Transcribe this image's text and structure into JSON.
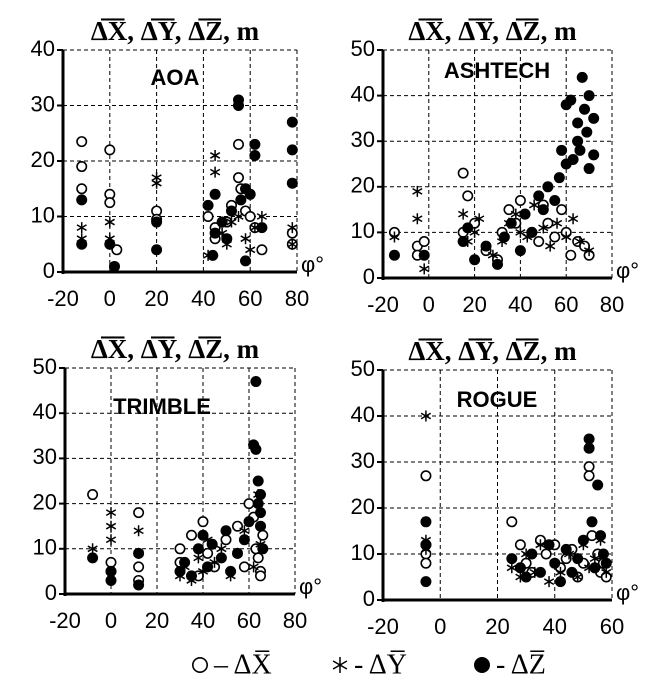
{
  "chart_data": [
    {
      "type": "scatter",
      "title": "Δ̅X̅, Δ̅Y̅, Δ̅Z̅, m",
      "label": "AOA",
      "x_label": "φ°",
      "xlim": [
        -20,
        80
      ],
      "ylim": [
        0,
        40
      ],
      "xticks": [
        -20,
        0,
        20,
        40,
        60,
        80
      ],
      "yticks": [
        0,
        10,
        20,
        30,
        40
      ],
      "grid": true,
      "series": [
        {
          "marker": "open-circle",
          "color": "#000000",
          "x": [
            -12,
            -12,
            -12,
            0,
            0,
            0,
            3,
            20,
            20,
            42,
            45,
            50,
            55,
            55,
            56,
            58,
            60,
            62,
            65,
            78,
            78,
            45,
            52
          ],
          "values": [
            23.5,
            19,
            15,
            22,
            14,
            12.5,
            4,
            11,
            9.5,
            10,
            8,
            9,
            23,
            17,
            15,
            11,
            10,
            8,
            4,
            7,
            5,
            6,
            12
          ]
        },
        {
          "marker": "star",
          "color": "#000000",
          "x": [
            -12,
            -12,
            0,
            0,
            2,
            20,
            20,
            45,
            45,
            48,
            50,
            52,
            55,
            58,
            60,
            62,
            65,
            78,
            78,
            42
          ],
          "values": [
            8,
            6,
            9,
            6,
            1,
            17,
            16,
            21,
            18,
            7,
            5,
            9,
            10,
            6,
            4,
            8,
            10,
            8,
            5,
            3
          ]
        },
        {
          "marker": "filled-circle",
          "color": "#000000",
          "x": [
            -12,
            -12,
            0,
            2,
            20,
            20,
            42,
            45,
            45,
            48,
            50,
            52,
            55,
            55,
            56,
            58,
            60,
            62,
            62,
            65,
            78,
            78,
            78,
            44,
            58
          ],
          "values": [
            13,
            5,
            5,
            1,
            9,
            4,
            12,
            14,
            7,
            9,
            6,
            11,
            31,
            30,
            13,
            15,
            14,
            23,
            21,
            8,
            27,
            22,
            16,
            3,
            2
          ]
        }
      ]
    },
    {
      "type": "scatter",
      "title": "Δ̅X̅, Δ̅Y̅, Δ̅Z̅, m",
      "label": "ASHTECH",
      "x_label": "φ°",
      "xlim": [
        -20,
        80
      ],
      "ylim": [
        0,
        50
      ],
      "xticks": [
        -20,
        0,
        20,
        40,
        60,
        80
      ],
      "yticks": [
        0,
        10,
        20,
        30,
        40,
        50
      ],
      "grid": true,
      "series": [
        {
          "marker": "open-circle",
          "color": "#000000",
          "x": [
            -15,
            -5,
            -5,
            -2,
            15,
            15,
            17,
            20,
            25,
            30,
            32,
            35,
            38,
            40,
            42,
            45,
            48,
            50,
            52,
            55,
            58,
            60,
            62,
            65,
            68,
            70
          ],
          "values": [
            10,
            7,
            5,
            8,
            10,
            23,
            18,
            12,
            6,
            4,
            10,
            15,
            12,
            17,
            14,
            10,
            8,
            16,
            12,
            9,
            15,
            10,
            5,
            8,
            7,
            5
          ]
        },
        {
          "marker": "star",
          "color": "#000000",
          "x": [
            -15,
            -5,
            -5,
            -2,
            15,
            17,
            20,
            22,
            28,
            32,
            35,
            38,
            40,
            43,
            46,
            50,
            53,
            56,
            60,
            63,
            66,
            70
          ],
          "values": [
            9,
            19,
            13,
            2,
            14,
            8,
            10,
            13,
            5,
            8,
            12,
            14,
            10,
            9,
            16,
            11,
            7,
            12,
            9,
            13,
            8,
            6
          ]
        },
        {
          "marker": "filled-circle",
          "color": "#000000",
          "x": [
            -15,
            -2,
            15,
            17,
            20,
            25,
            30,
            33,
            36,
            40,
            42,
            45,
            48,
            50,
            52,
            55,
            57,
            58,
            60,
            60,
            62,
            63,
            65,
            65,
            66,
            67,
            68,
            69,
            70,
            70,
            72,
            72
          ],
          "values": [
            5,
            5,
            8,
            11,
            4,
            7,
            3,
            9,
            12,
            6,
            14,
            10,
            18,
            15,
            20,
            17,
            22,
            28,
            38,
            25,
            39,
            26,
            30,
            34,
            28,
            44,
            37,
            32,
            40,
            24,
            35,
            27
          ]
        }
      ]
    },
    {
      "type": "scatter",
      "title": "Δ̅X̅, Δ̅Y̅, Δ̅Z̅, m",
      "label": "TRIMBLE",
      "x_label": "φ°",
      "xlim": [
        -20,
        80
      ],
      "ylim": [
        0,
        50
      ],
      "xticks": [
        -20,
        0,
        20,
        40,
        60,
        80
      ],
      "yticks": [
        0,
        10,
        20,
        30,
        40,
        50
      ],
      "grid": true,
      "series": [
        {
          "marker": "open-circle",
          "color": "#000000",
          "x": [
            -8,
            0,
            0,
            12,
            12,
            12,
            30,
            30,
            35,
            38,
            40,
            42,
            45,
            50,
            55,
            58,
            60,
            62,
            63,
            64,
            65,
            65,
            66
          ],
          "values": [
            22,
            7,
            5,
            18,
            6,
            3,
            10,
            7,
            13,
            4,
            16,
            9,
            6,
            12,
            15,
            6,
            20,
            17,
            10,
            8,
            5,
            4,
            13
          ]
        },
        {
          "marker": "star",
          "color": "#000000",
          "x": [
            -8,
            0,
            0,
            0,
            12,
            12,
            30,
            32,
            35,
            38,
            40,
            42,
            45,
            48,
            52,
            55,
            58,
            62,
            64,
            65
          ],
          "values": [
            10,
            18,
            15,
            12,
            14,
            9,
            4,
            6,
            3,
            8,
            5,
            12,
            7,
            10,
            4,
            9,
            14,
            6,
            22,
            11
          ]
        },
        {
          "marker": "filled-circle",
          "color": "#000000",
          "x": [
            -8,
            0,
            0,
            12,
            12,
            30,
            32,
            35,
            38,
            40,
            42,
            44,
            48,
            50,
            52,
            55,
            58,
            60,
            62,
            63,
            63,
            64,
            64,
            65,
            65,
            65,
            66
          ],
          "values": [
            8,
            5,
            3,
            9,
            2,
            5,
            7,
            4,
            10,
            13,
            6,
            11,
            8,
            14,
            5,
            9,
            12,
            16,
            33,
            47,
            32,
            25,
            20,
            22,
            15,
            18,
            10
          ]
        }
      ]
    },
    {
      "type": "scatter",
      "title": "Δ̅X̅, Δ̅Y̅, Δ̅Z̅, m",
      "label": "ROGUE",
      "x_label": "φ°",
      "xlim": [
        -20,
        60
      ],
      "ylim": [
        0,
        50
      ],
      "xticks": [
        -20,
        0,
        20,
        40,
        60
      ],
      "yticks": [
        0,
        10,
        20,
        30,
        40,
        50
      ],
      "grid": true,
      "series": [
        {
          "marker": "open-circle",
          "color": "#000000",
          "x": [
            -5,
            -5,
            -5,
            -5,
            25,
            28,
            30,
            32,
            35,
            37,
            40,
            42,
            44,
            46,
            48,
            50,
            52,
            52,
            53,
            55,
            56,
            57,
            58
          ],
          "values": [
            27,
            12,
            10,
            8,
            17,
            12,
            8,
            6,
            13,
            10,
            12,
            7,
            9,
            11,
            5,
            8,
            29,
            27,
            14,
            10,
            6,
            8,
            5
          ]
        },
        {
          "marker": "star",
          "color": "#000000",
          "x": [
            -5,
            -5,
            -5,
            25,
            28,
            30,
            33,
            35,
            38,
            40,
            42,
            45,
            48,
            50,
            52,
            54,
            56,
            58
          ],
          "values": [
            40,
            13,
            11,
            7,
            5,
            10,
            6,
            12,
            4,
            8,
            6,
            10,
            5,
            12,
            7,
            9,
            13,
            6
          ]
        },
        {
          "marker": "filled-circle",
          "color": "#000000",
          "x": [
            -5,
            -5,
            -5,
            25,
            28,
            30,
            32,
            35,
            38,
            40,
            42,
            44,
            46,
            48,
            50,
            52,
            52,
            53,
            54,
            55,
            56,
            57,
            58
          ],
          "values": [
            17,
            12,
            4,
            9,
            7,
            5,
            10,
            6,
            12,
            8,
            4,
            11,
            6,
            9,
            13,
            35,
            33,
            17,
            7,
            25,
            14,
            10,
            8
          ]
        }
      ]
    }
  ],
  "legend": [
    {
      "marker": "open-circle",
      "label": "– ΔX̅"
    },
    {
      "marker": "star",
      "label": "- ΔY̅"
    },
    {
      "marker": "filled-circle",
      "label": "- ΔZ̅"
    }
  ]
}
